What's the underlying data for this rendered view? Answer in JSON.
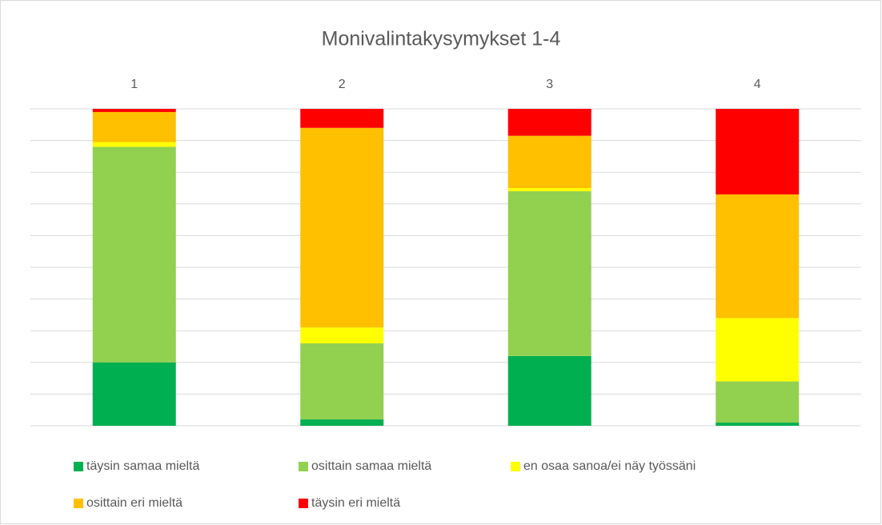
{
  "chart_data": {
    "type": "stacked_bar",
    "title": "Monivalintakysymykset 1-4",
    "categories": [
      "1",
      "2",
      "3",
      "4"
    ],
    "series": [
      {
        "name": "täysin samaa mieltä",
        "color": "#00b050",
        "values": [
          20,
          2,
          22,
          1
        ]
      },
      {
        "name": "osittain samaa mieltä",
        "color": "#92d050",
        "values": [
          68,
          24,
          52,
          13
        ]
      },
      {
        "name": "en osaa sanoa/ei näy työssäni",
        "color": "#ffff00",
        "values": [
          1.5,
          5,
          1,
          20
        ]
      },
      {
        "name": "osittain eri mieltä",
        "color": "#ffc000",
        "values": [
          9.5,
          63,
          16.5,
          39
        ]
      },
      {
        "name": "täysin eri mieltä",
        "color": "#ff0000",
        "values": [
          1,
          6,
          8.5,
          27
        ]
      }
    ],
    "ylim": [
      0,
      100
    ],
    "yticks": [
      0,
      10,
      20,
      30,
      40,
      50,
      60,
      70,
      80,
      90,
      100
    ],
    "grid": true
  }
}
